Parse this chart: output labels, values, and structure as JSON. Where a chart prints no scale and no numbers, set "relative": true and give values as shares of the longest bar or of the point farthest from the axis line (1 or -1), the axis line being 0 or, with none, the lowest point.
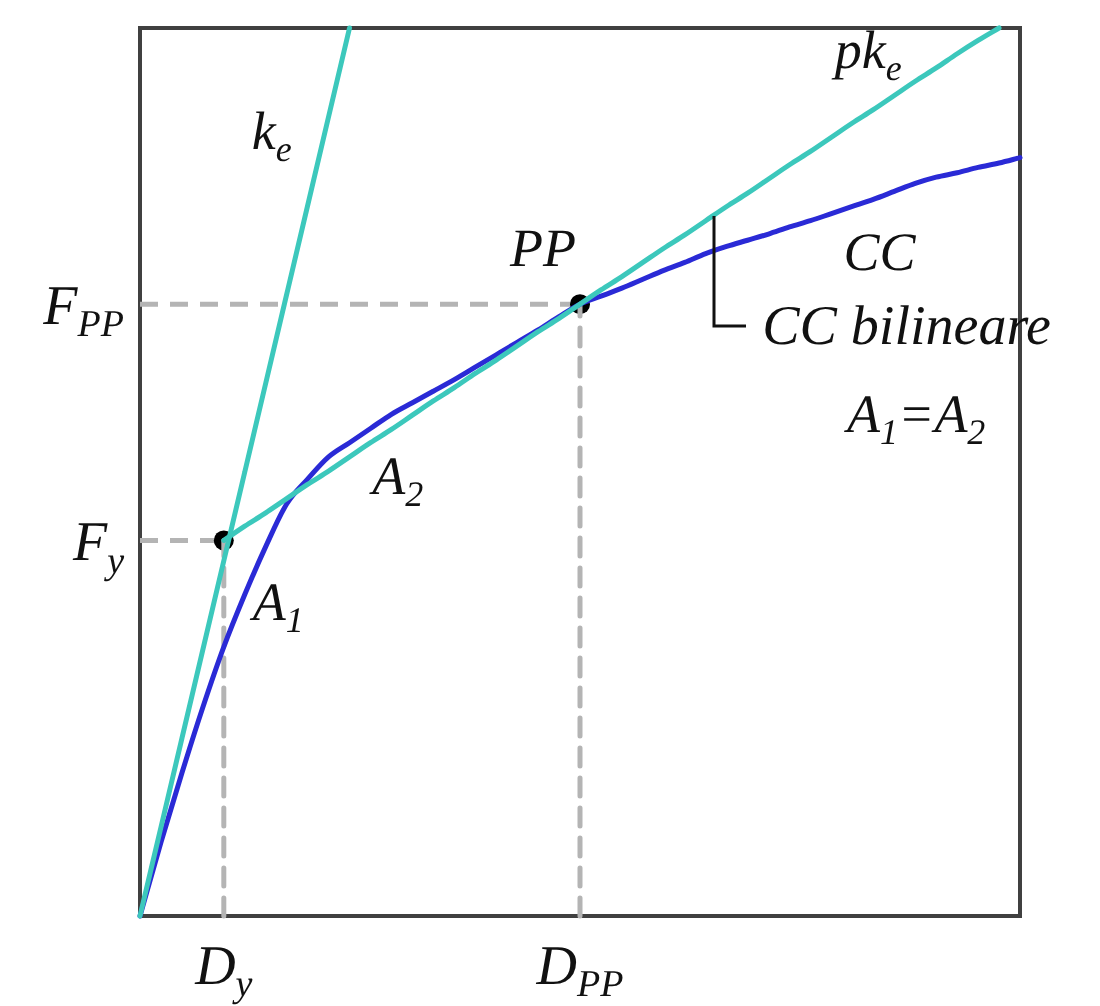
{
  "chart_data": {
    "type": "line",
    "relative": true,
    "marker": "none",
    "line_style": "solid",
    "categories": [
      null,
      null,
      null,
      null,
      "D$_{y}$",
      null,
      null,
      null,
      null,
      null,
      null,
      null,
      null,
      null,
      null,
      null,
      null,
      null,
      null,
      null,
      null,
      "D$_{PP}$",
      null,
      null,
      null,
      null,
      null,
      null,
      null,
      null,
      null,
      null,
      null,
      null,
      null,
      null,
      null,
      null,
      null,
      null,
      null,
      null,
      null
    ],
    "series": [
      {
        "name": "k$_{e}$",
        "color": "#3cc8bc",
        "values": [
          0,
          0.1,
          0.2,
          0.3,
          0.4,
          0.5,
          0.6,
          0.7,
          0.8,
          0.9,
          1,
          null,
          null,
          null,
          null,
          null,
          null,
          null,
          null,
          null,
          null,
          null,
          null,
          null,
          null,
          null,
          null,
          null,
          null,
          null,
          null,
          null,
          null,
          null,
          null,
          null,
          null,
          null,
          null,
          null,
          null,
          null,
          null
        ]
      },
      {
        "name": "pk$_{e}$",
        "color": "#3cc8bc",
        "values": [
          null,
          null,
          null,
          null,
          0.423,
          0.439,
          0.454,
          0.47,
          0.486,
          0.501,
          0.517,
          0.533,
          0.548,
          0.564,
          0.58,
          0.595,
          0.611,
          0.626,
          0.642,
          0.658,
          0.673,
          0.689,
          0.705,
          0.72,
          0.736,
          0.752,
          0.767,
          0.783,
          0.799,
          0.814,
          0.83,
          0.846,
          0.861,
          0.877,
          0.893,
          0.908,
          0.924,
          0.94,
          0.955,
          0.971,
          0.986,
          1,
          null
        ]
      },
      {
        "name": "CC",
        "color": "#2a2ad6",
        "values": [
          0,
          0.083,
          0.161,
          0.235,
          0.303,
          0.362,
          0.416,
          0.464,
          0.492,
          0.517,
          0.533,
          0.549,
          0.565,
          0.578,
          0.591,
          0.604,
          0.618,
          0.632,
          0.646,
          0.66,
          0.675,
          0.689,
          0.698,
          0.707,
          0.717,
          0.727,
          0.736,
          0.746,
          0.754,
          0.761,
          0.768,
          0.776,
          0.783,
          0.791,
          0.799,
          0.807,
          0.816,
          0.825,
          0.832,
          0.837,
          0.843,
          0.848,
          0.854
        ]
      },
      {
        "color": "#b4b4b4",
        "line_style": "dashed",
        "x": [
          "D$_{y}$",
          "D$_{y}$"
        ],
        "values": [
          0,
          0.423
        ]
      },
      {
        "color": "#b4b4b4",
        "line_style": "dashed",
        "x": [
          "D$_{PP}$",
          "D$_{PP}$"
        ],
        "values": [
          0,
          0.689
        ]
      },
      {
        "type": "scatter",
        "color": "#000000",
        "marker": "circle",
        "values": [
          null,
          null,
          null,
          null,
          0.423,
          null,
          null,
          null,
          null,
          null,
          null,
          null,
          null,
          null,
          null,
          null,
          null,
          null,
          null,
          null,
          null,
          0.689,
          null,
          null,
          null,
          null,
          null,
          null,
          null,
          null,
          null,
          null,
          null,
          null,
          null,
          null,
          null,
          null,
          null,
          null,
          null,
          null,
          null
        ]
      }
    ],
    "ref_lines": [
      {
        "axis": "y",
        "value": 0.423,
        "label": "F$_{y}$",
        "color": "#b4b4b4",
        "line_style": "dashed"
      },
      {
        "axis": "y",
        "value": 0.689,
        "label": "F$_{PP}$",
        "color": "#b4b4b4",
        "line_style": "dashed"
      }
    ],
    "annotations": [
      {
        "text": "PP",
        "x": "D$_{PP}$",
        "y": 0.689
      },
      "A$_{1}$",
      "A$_{2}$",
      "CC bilineare",
      "A$_{1}$=A$_{2}$"
    ]
  }
}
